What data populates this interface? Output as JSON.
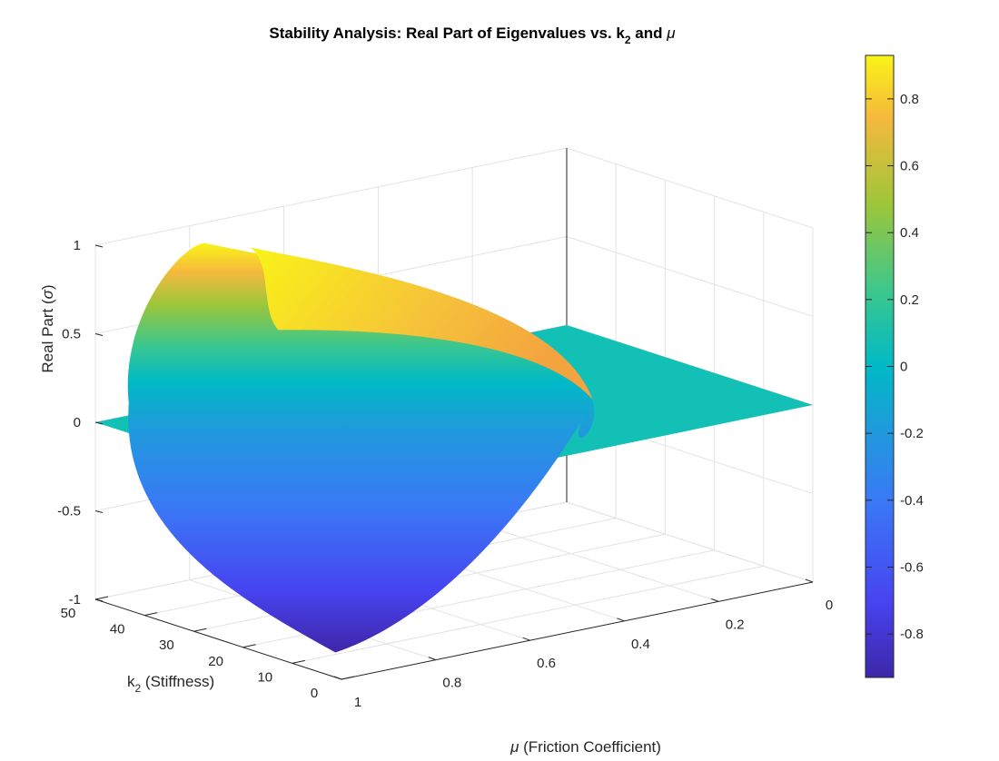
{
  "chart_data": {
    "type": "surface3d",
    "title": "Stability Analysis: Real Part of Eigenvalues vs. k",
    "title_subscript": "2",
    "title_suffix": " and ",
    "title_symbol": "μ",
    "xlabel": "(Friction Coefficient)",
    "xlabel_symbol": "μ",
    "ylabel": "k",
    "ylabel_subscript": "2",
    "ylabel_suffix": " (Stiffness)",
    "zlabel": "Real Part (",
    "zlabel_symbol": "σ",
    "zlabel_close": ")",
    "x_ticks": [
      "0",
      "0.2",
      "0.4",
      "0.6",
      "0.8",
      "1"
    ],
    "x_tick_values": [
      0,
      0.2,
      0.4,
      0.6,
      0.8,
      1
    ],
    "y_ticks": [
      "0",
      "10",
      "20",
      "30",
      "40",
      "50"
    ],
    "y_tick_values": [
      0,
      10,
      20,
      30,
      40,
      50
    ],
    "z_ticks": [
      "-1",
      "-0.5",
      "0",
      "0.5",
      "1"
    ],
    "z_tick_values": [
      -1,
      -0.5,
      0,
      0.5,
      1
    ],
    "xlim": [
      0,
      1
    ],
    "ylim": [
      0,
      50
    ],
    "zlim": [
      -1,
      1
    ],
    "grid": true,
    "colormap": "parula",
    "colorbar": {
      "ticks": [
        "0.8",
        "0.6",
        "0.4",
        "0.2",
        "0",
        "-0.2",
        "-0.4",
        "-0.6",
        "-0.8"
      ],
      "tick_values": [
        0.8,
        0.6,
        0.4,
        0.2,
        0,
        -0.2,
        -0.4,
        -0.6,
        -0.8
      ],
      "range": [
        -0.93,
        0.93
      ]
    },
    "surface": {
      "plane_value": 0,
      "lobe_mu_range": [
        0.28,
        1.0
      ],
      "lobe_k2_range": [
        5,
        48
      ],
      "lobe_peak_real": 0.93,
      "lobe_min_real": -0.93
    },
    "colors": [
      "#3e26a8",
      "#4743f0",
      "#3a78f6",
      "#1f9bdb",
      "#00b9c6",
      "#3bc78e",
      "#9dc63a",
      "#f5b93c",
      "#f9f417"
    ]
  }
}
